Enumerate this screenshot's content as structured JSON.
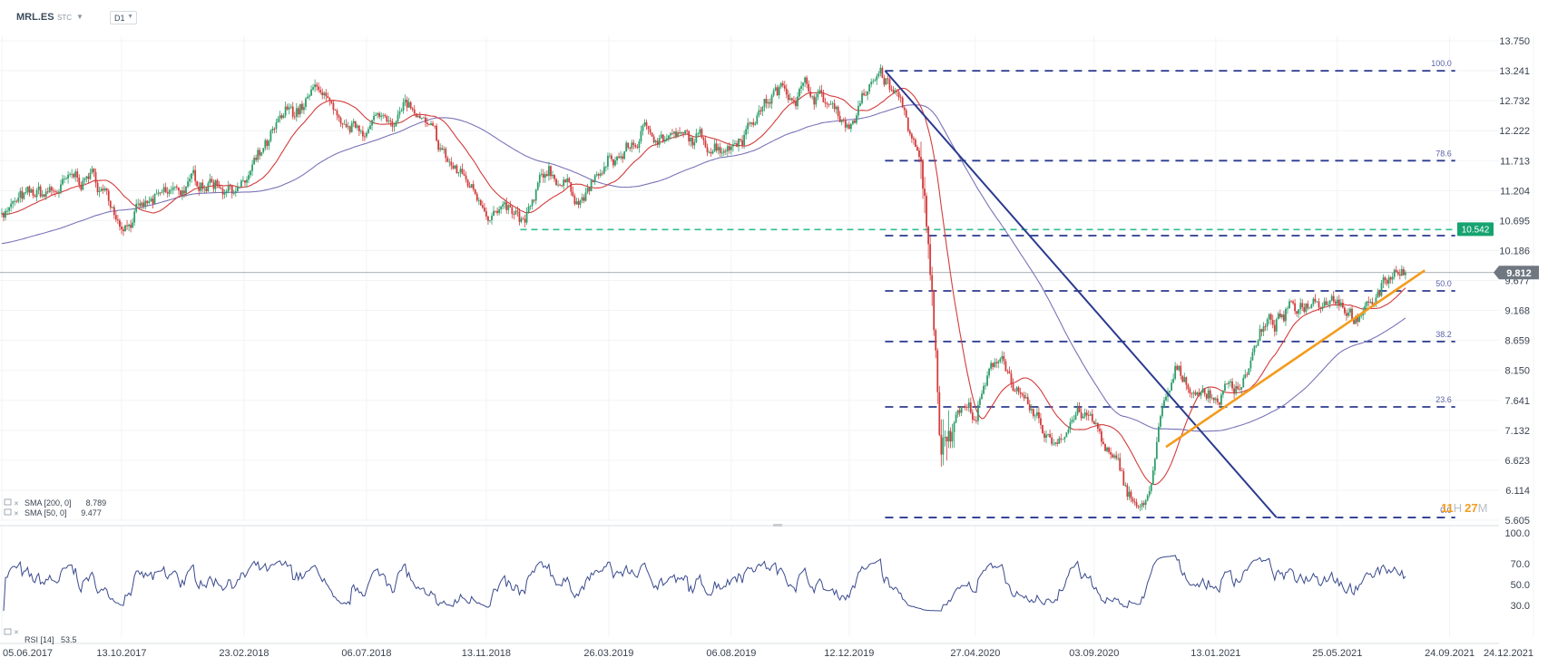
{
  "toolbar": {
    "symbol": "MRL.ES",
    "exchange": "STC",
    "timeframe": "D1"
  },
  "timer": {
    "hours": "11",
    "h_unit": "H",
    "minutes": "27",
    "m_unit": "M"
  },
  "chart_data": [
    {
      "type": "candlestick",
      "title": "MRL.ES",
      "x_ticks": [
        "05.06.2017",
        "13.10.2017",
        "23.02.2018",
        "06.07.2018",
        "13.11.2018",
        "26.03.2019",
        "06.08.2019",
        "12.12.2019",
        "27.04.2020",
        "03.09.2020",
        "13.01.2021",
        "25.05.2021",
        "24.09.2021",
        "24.12.2021"
      ],
      "y_ticks": [
        "13.750",
        "13.241",
        "12.732",
        "12.222",
        "11.713",
        "11.204",
        "10.695",
        "10.186",
        "9.677",
        "9.168",
        "8.659",
        "8.150",
        "7.641",
        "7.132",
        "6.623",
        "6.114",
        "5.605"
      ],
      "ylim": [
        5.605,
        13.75
      ],
      "last_price": "9.812",
      "highlight_level": "10.542",
      "price_anchors": [
        {
          "x": "2017-06-05",
          "y": 10.9
        },
        {
          "x": "2017-07-20",
          "y": 11.1
        },
        {
          "x": "2017-09-10",
          "y": 11.45
        },
        {
          "x": "2017-10-13",
          "y": 10.75
        },
        {
          "x": "2017-11-25",
          "y": 11.0
        },
        {
          "x": "2018-01-10",
          "y": 11.4
        },
        {
          "x": "2018-02-23",
          "y": 11.3
        },
        {
          "x": "2018-04-10",
          "y": 12.4
        },
        {
          "x": "2018-05-20",
          "y": 12.95
        },
        {
          "x": "2018-06-08",
          "y": 12.0
        },
        {
          "x": "2018-07-06",
          "y": 12.3
        },
        {
          "x": "2018-08-20",
          "y": 12.65
        },
        {
          "x": "2018-09-30",
          "y": 11.7
        },
        {
          "x": "2018-11-13",
          "y": 11.0
        },
        {
          "x": "2018-12-25",
          "y": 10.55
        },
        {
          "x": "2019-01-20",
          "y": 11.55
        },
        {
          "x": "2019-02-25",
          "y": 11.1
        },
        {
          "x": "2019-03-26",
          "y": 11.6
        },
        {
          "x": "2019-05-10",
          "y": 12.25
        },
        {
          "x": "2019-06-25",
          "y": 12.0
        },
        {
          "x": "2019-08-06",
          "y": 12.05
        },
        {
          "x": "2019-09-20",
          "y": 12.85
        },
        {
          "x": "2019-10-25",
          "y": 13.0
        },
        {
          "x": "2019-12-12",
          "y": 12.35
        },
        {
          "x": "2020-01-15",
          "y": 13.2
        },
        {
          "x": "2020-02-10",
          "y": 12.55
        },
        {
          "x": "2020-02-28",
          "y": 11.5
        },
        {
          "x": "2020-03-10",
          "y": 9.7
        },
        {
          "x": "2020-03-20",
          "y": 6.9
        },
        {
          "x": "2020-04-10",
          "y": 7.6
        },
        {
          "x": "2020-04-27",
          "y": 7.4
        },
        {
          "x": "2020-05-25",
          "y": 8.5
        },
        {
          "x": "2020-06-20",
          "y": 7.4
        },
        {
          "x": "2020-07-20",
          "y": 6.9
        },
        {
          "x": "2020-08-15",
          "y": 7.5
        },
        {
          "x": "2020-09-03",
          "y": 7.2
        },
        {
          "x": "2020-10-05",
          "y": 6.2
        },
        {
          "x": "2020-10-28",
          "y": 5.7
        },
        {
          "x": "2020-11-15",
          "y": 7.3
        },
        {
          "x": "2020-12-01",
          "y": 8.05
        },
        {
          "x": "2021-01-13",
          "y": 7.7
        },
        {
          "x": "2021-02-10",
          "y": 8.0
        },
        {
          "x": "2021-03-05",
          "y": 8.85
        },
        {
          "x": "2021-03-25",
          "y": 9.0
        },
        {
          "x": "2021-05-01",
          "y": 9.45
        },
        {
          "x": "2021-05-25",
          "y": 9.5
        },
        {
          "x": "2021-06-20",
          "y": 9.0
        },
        {
          "x": "2021-07-10",
          "y": 9.5
        },
        {
          "x": "2021-08-01",
          "y": 10.0
        },
        {
          "x": "2021-08-08",
          "y": 9.812
        }
      ],
      "overlays": {
        "fibonacci": [
          {
            "label": "100.0",
            "y": 13.24
          },
          {
            "label": "78.6",
            "y": 11.713
          },
          {
            "label": "",
            "y": 10.44
          },
          {
            "label": "50.0",
            "y": 9.5
          },
          {
            "label": "38.2",
            "y": 8.64
          },
          {
            "label": "23.6",
            "y": 7.53
          },
          {
            "label": "0.0",
            "y": 5.65
          }
        ],
        "fib_start": "2020-01-20",
        "fib_end": "2021-09-30",
        "downtrend": [
          {
            "x": "2020-01-20",
            "y": 13.24
          },
          {
            "x": "2021-03-20",
            "y": 5.65
          }
        ],
        "uptrend": [
          {
            "x": "2020-11-20",
            "y": 6.85
          },
          {
            "x": "2021-08-28",
            "y": 9.85
          }
        ],
        "support_line": {
          "from": "2018-12-20",
          "to": "2021-09-30",
          "y": 10.542
        },
        "price_line": {
          "y": 9.812
        }
      },
      "legend": [
        {
          "label": "SMA [200, 0]",
          "value": "8.789",
          "color": "#7a74b8"
        },
        {
          "label": "SMA [50, 0]",
          "value": "9.477",
          "color": "#d33c3c"
        }
      ],
      "colors": {
        "up": "#2e9e6a",
        "down": "#d33c3c",
        "fib": "#2b3a8e",
        "uptrend": "#f39c1c",
        "support": "#2fbf8f"
      }
    },
    {
      "type": "line",
      "title": "RSI [14]",
      "legend_value": "53.5",
      "y_ticks": [
        "100.0",
        "70.0",
        "50.0",
        "30.0"
      ],
      "ylim": [
        0,
        100
      ],
      "color": "#3a4a8e"
    }
  ]
}
